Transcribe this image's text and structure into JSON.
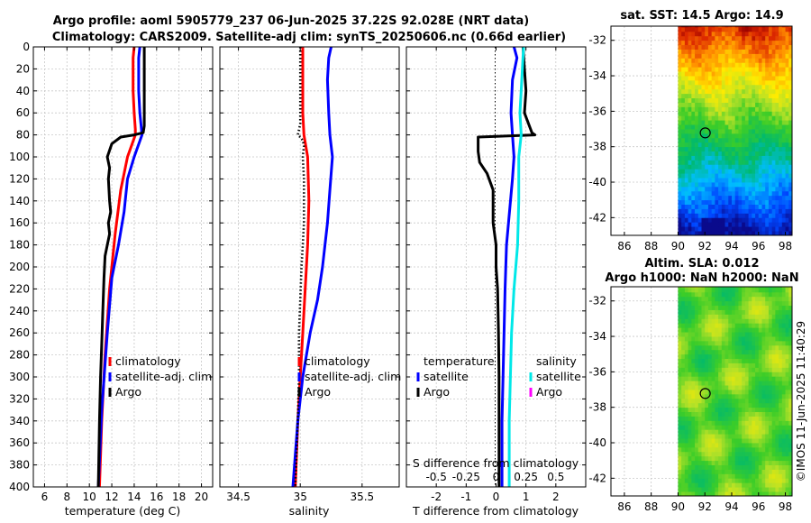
{
  "figure": {
    "title_line1": "Argo profile: aoml 5905779_237 06-Jun-2025 37.22S 92.028E (NRT data)",
    "title_line2": "Climatology: CARS2009. Satellite-adj clim: synTS_20250606.nc (0.66d earlier)",
    "credit": "©IMOS 11-Jun-2025 11:40:29"
  },
  "chart_data": [
    {
      "id": "temperature",
      "type": "line",
      "xlabel": "temperature (deg C)",
      "ylabel": "",
      "xlim": [
        5,
        21
      ],
      "ylim": [
        0,
        400
      ],
      "y_reversed": true,
      "xticks": [
        "6",
        "8",
        "10",
        "12",
        "14",
        "16",
        "18",
        "20"
      ],
      "xtick_values": [
        6,
        8,
        10,
        12,
        14,
        16,
        18,
        20
      ],
      "yticks": [
        "0",
        "20",
        "40",
        "60",
        "80",
        "100",
        "120",
        "140",
        "160",
        "180",
        "200",
        "220",
        "240",
        "260",
        "280",
        "300",
        "320",
        "340",
        "360",
        "380",
        "400"
      ],
      "ytick_values": [
        0,
        20,
        40,
        60,
        80,
        100,
        120,
        140,
        160,
        180,
        200,
        220,
        240,
        260,
        280,
        300,
        320,
        340,
        360,
        380,
        400
      ],
      "legend": [
        "climatology",
        "satellite-adj. clim",
        "Argo"
      ],
      "series": [
        {
          "name": "climatology",
          "color": "#ff0000",
          "style": "solid",
          "points": [
            [
              14.0,
              0
            ],
            [
              13.9,
              10
            ],
            [
              13.9,
              40
            ],
            [
              14.0,
              60
            ],
            [
              14.1,
              75
            ],
            [
              14.1,
              80
            ],
            [
              13.4,
              100
            ],
            [
              12.8,
              130
            ],
            [
              12.3,
              170
            ],
            [
              11.8,
              220
            ],
            [
              11.4,
              280
            ],
            [
              11.1,
              340
            ],
            [
              10.9,
              400
            ]
          ]
        },
        {
          "name": "satellite-adj. clim",
          "color": "#0000ff",
          "style": "solid",
          "points": [
            [
              14.5,
              0
            ],
            [
              14.4,
              10
            ],
            [
              14.4,
              40
            ],
            [
              14.5,
              60
            ],
            [
              14.6,
              70
            ],
            [
              14.7,
              80
            ],
            [
              14.0,
              100
            ],
            [
              13.4,
              120
            ],
            [
              13.1,
              150
            ],
            [
              12.6,
              180
            ],
            [
              12.0,
              210
            ],
            [
              11.6,
              260
            ],
            [
              11.1,
              330
            ],
            [
              10.8,
              400
            ]
          ]
        },
        {
          "name": "Argo",
          "color": "#000000",
          "style": "solid",
          "points": [
            [
              14.9,
              0
            ],
            [
              14.9,
              20
            ],
            [
              14.9,
              40
            ],
            [
              14.9,
              60
            ],
            [
              14.9,
              72
            ],
            [
              14.8,
              78
            ],
            [
              14.0,
              80
            ],
            [
              12.8,
              82
            ],
            [
              12.0,
              88
            ],
            [
              11.6,
              100
            ],
            [
              11.8,
              110
            ],
            [
              11.7,
              120
            ],
            [
              11.8,
              140
            ],
            [
              11.9,
              150
            ],
            [
              11.7,
              160
            ],
            [
              11.8,
              170
            ],
            [
              11.6,
              180
            ],
            [
              11.4,
              190
            ],
            [
              11.3,
              210
            ],
            [
              11.2,
              240
            ],
            [
              11.1,
              270
            ],
            [
              11.0,
              300
            ],
            [
              10.9,
              340
            ],
            [
              10.8,
              400
            ]
          ]
        }
      ]
    },
    {
      "id": "salinity",
      "type": "line",
      "xlabel": "salinity",
      "ylabel": "",
      "xlim": [
        34.35,
        35.8
      ],
      "ylim": [
        0,
        400
      ],
      "y_reversed": true,
      "xticks": [
        "34.5",
        "35",
        "35.5"
      ],
      "xtick_values": [
        34.5,
        35,
        35.5
      ],
      "legend": [
        "climatology",
        "satellite-adj. clim",
        "Argo"
      ],
      "series": [
        {
          "name": "climatology",
          "color": "#ff0000",
          "style": "solid",
          "points": [
            [
              35.02,
              0
            ],
            [
              35.02,
              20
            ],
            [
              35.02,
              60
            ],
            [
              35.03,
              80
            ],
            [
              35.06,
              100
            ],
            [
              35.07,
              140
            ],
            [
              35.06,
              180
            ],
            [
              35.04,
              220
            ],
            [
              35.02,
              260
            ],
            [
              35.0,
              300
            ],
            [
              34.98,
              340
            ],
            [
              34.96,
              400
            ]
          ]
        },
        {
          "name": "satellite-adj. clim",
          "color": "#0000ff",
          "style": "solid",
          "points": [
            [
              35.25,
              0
            ],
            [
              35.23,
              10
            ],
            [
              35.22,
              30
            ],
            [
              35.23,
              60
            ],
            [
              35.24,
              80
            ],
            [
              35.26,
              100
            ],
            [
              35.24,
              130
            ],
            [
              35.22,
              160
            ],
            [
              35.18,
              200
            ],
            [
              35.14,
              230
            ],
            [
              35.08,
              260
            ],
            [
              35.02,
              300
            ],
            [
              34.98,
              340
            ],
            [
              34.94,
              400
            ]
          ]
        },
        {
          "name": "Argo",
          "color": "#000000",
          "style": "dotted",
          "points": [
            [
              35.0,
              0
            ],
            [
              35.0,
              40
            ],
            [
              35.0,
              70
            ],
            [
              34.98,
              80
            ],
            [
              35.0,
              82
            ],
            [
              35.02,
              85
            ],
            [
              35.03,
              90
            ],
            [
              35.02,
              100
            ],
            [
              35.03,
              120
            ],
            [
              35.03,
              140
            ],
            [
              35.03,
              160
            ],
            [
              35.02,
              180
            ],
            [
              35.01,
              200
            ],
            [
              35.0,
              230
            ],
            [
              34.99,
              260
            ],
            [
              34.99,
              300
            ],
            [
              34.98,
              340
            ],
            [
              34.96,
              400
            ]
          ]
        }
      ]
    },
    {
      "id": "differences",
      "type": "line",
      "xlabel": "T difference from climatology",
      "top_xlabel": "S difference from climatology",
      "xlim": [
        -3,
        3
      ],
      "ylim": [
        0,
        400
      ],
      "y_reversed": true,
      "xticks": [
        "-2",
        "-1",
        "0",
        "1",
        "2"
      ],
      "xtick_values": [
        -2,
        -1,
        0,
        1,
        2
      ],
      "sticks": [
        "-0.5",
        "-0.25",
        "0",
        "0.25",
        "0.5"
      ],
      "stick_values": [
        -0.5,
        -0.25,
        0,
        0.25,
        0.5
      ],
      "slim": [
        -0.75,
        0.75
      ],
      "legend_temperature_title": "temperature",
      "legend_salinity_title": "salinity",
      "legend_temperature": [
        "satellite",
        "Argo"
      ],
      "legend_salinity": [
        "satellite",
        "Argo"
      ],
      "series": [
        {
          "name": "T satellite",
          "color": "#0000ff",
          "style": "solid",
          "points": [
            [
              0.6,
              0
            ],
            [
              0.7,
              10
            ],
            [
              0.55,
              30
            ],
            [
              0.5,
              60
            ],
            [
              0.55,
              80
            ],
            [
              0.6,
              100
            ],
            [
              0.55,
              120
            ],
            [
              0.45,
              150
            ],
            [
              0.35,
              180
            ],
            [
              0.3,
              220
            ],
            [
              0.25,
              280
            ],
            [
              0.2,
              340
            ],
            [
              0.2,
              400
            ]
          ]
        },
        {
          "name": "T Argo",
          "color": "#000000",
          "style": "solid",
          "points": [
            [
              0.9,
              0
            ],
            [
              0.95,
              20
            ],
            [
              1.0,
              40
            ],
            [
              0.95,
              60
            ],
            [
              1.2,
              78
            ],
            [
              1.3,
              80
            ],
            [
              -0.6,
              82
            ],
            [
              -0.6,
              88
            ],
            [
              -0.6,
              95
            ],
            [
              -0.55,
              105
            ],
            [
              -0.3,
              115
            ],
            [
              -0.1,
              130
            ],
            [
              -0.1,
              160
            ],
            [
              0.0,
              180
            ],
            [
              0.0,
              200
            ],
            [
              0.05,
              220
            ],
            [
              0.08,
              260
            ],
            [
              0.1,
              300
            ],
            [
              0.1,
              340
            ],
            [
              0.1,
              400
            ]
          ]
        },
        {
          "name": "S satellite",
          "color": "#00e8e8",
          "style": "solid",
          "sdiff": true,
          "points": [
            [
              0.23,
              0
            ],
            [
              0.22,
              20
            ],
            [
              0.2,
              60
            ],
            [
              0.21,
              80
            ],
            [
              0.19,
              100
            ],
            [
              0.19,
              140
            ],
            [
              0.18,
              180
            ],
            [
              0.15,
              220
            ],
            [
              0.13,
              260
            ],
            [
              0.12,
              300
            ],
            [
              0.11,
              340
            ],
            [
              0.11,
              400
            ]
          ]
        }
      ]
    },
    {
      "id": "sst_map",
      "type": "heatmap",
      "title": "sat. SST: 14.5 Argo: 14.9",
      "xlim": [
        85,
        98.5
      ],
      "ylim": [
        -43,
        -31.2
      ],
      "xticks": [
        "86",
        "88",
        "90",
        "92",
        "94",
        "96",
        "98"
      ],
      "xtick_values": [
        86,
        88,
        90,
        92,
        94,
        96,
        98
      ],
      "yticks": [
        "-32",
        "-34",
        "-36",
        "-38",
        "-40",
        "-42"
      ],
      "ytick_values": [
        -32,
        -34,
        -36,
        -38,
        -40,
        -42
      ],
      "data_xstart": 90,
      "float_position": [
        92.028,
        -37.22
      ]
    },
    {
      "id": "sla_map",
      "type": "heatmap",
      "title_line1": "Altim. SLA: 0.012",
      "title_line2": "Argo h1000: NaN h2000: NaN",
      "xlim": [
        85,
        98.5
      ],
      "ylim": [
        -43,
        -31.2
      ],
      "xticks": [
        "86",
        "88",
        "90",
        "92",
        "94",
        "96",
        "98"
      ],
      "xtick_values": [
        86,
        88,
        90,
        92,
        94,
        96,
        98
      ],
      "yticks": [
        "-32",
        "-34",
        "-36",
        "-38",
        "-40",
        "-42"
      ],
      "ytick_values": [
        -32,
        -34,
        -36,
        -38,
        -40,
        -42
      ],
      "data_xstart": 90,
      "float_position": [
        92.028,
        -37.22
      ]
    }
  ]
}
